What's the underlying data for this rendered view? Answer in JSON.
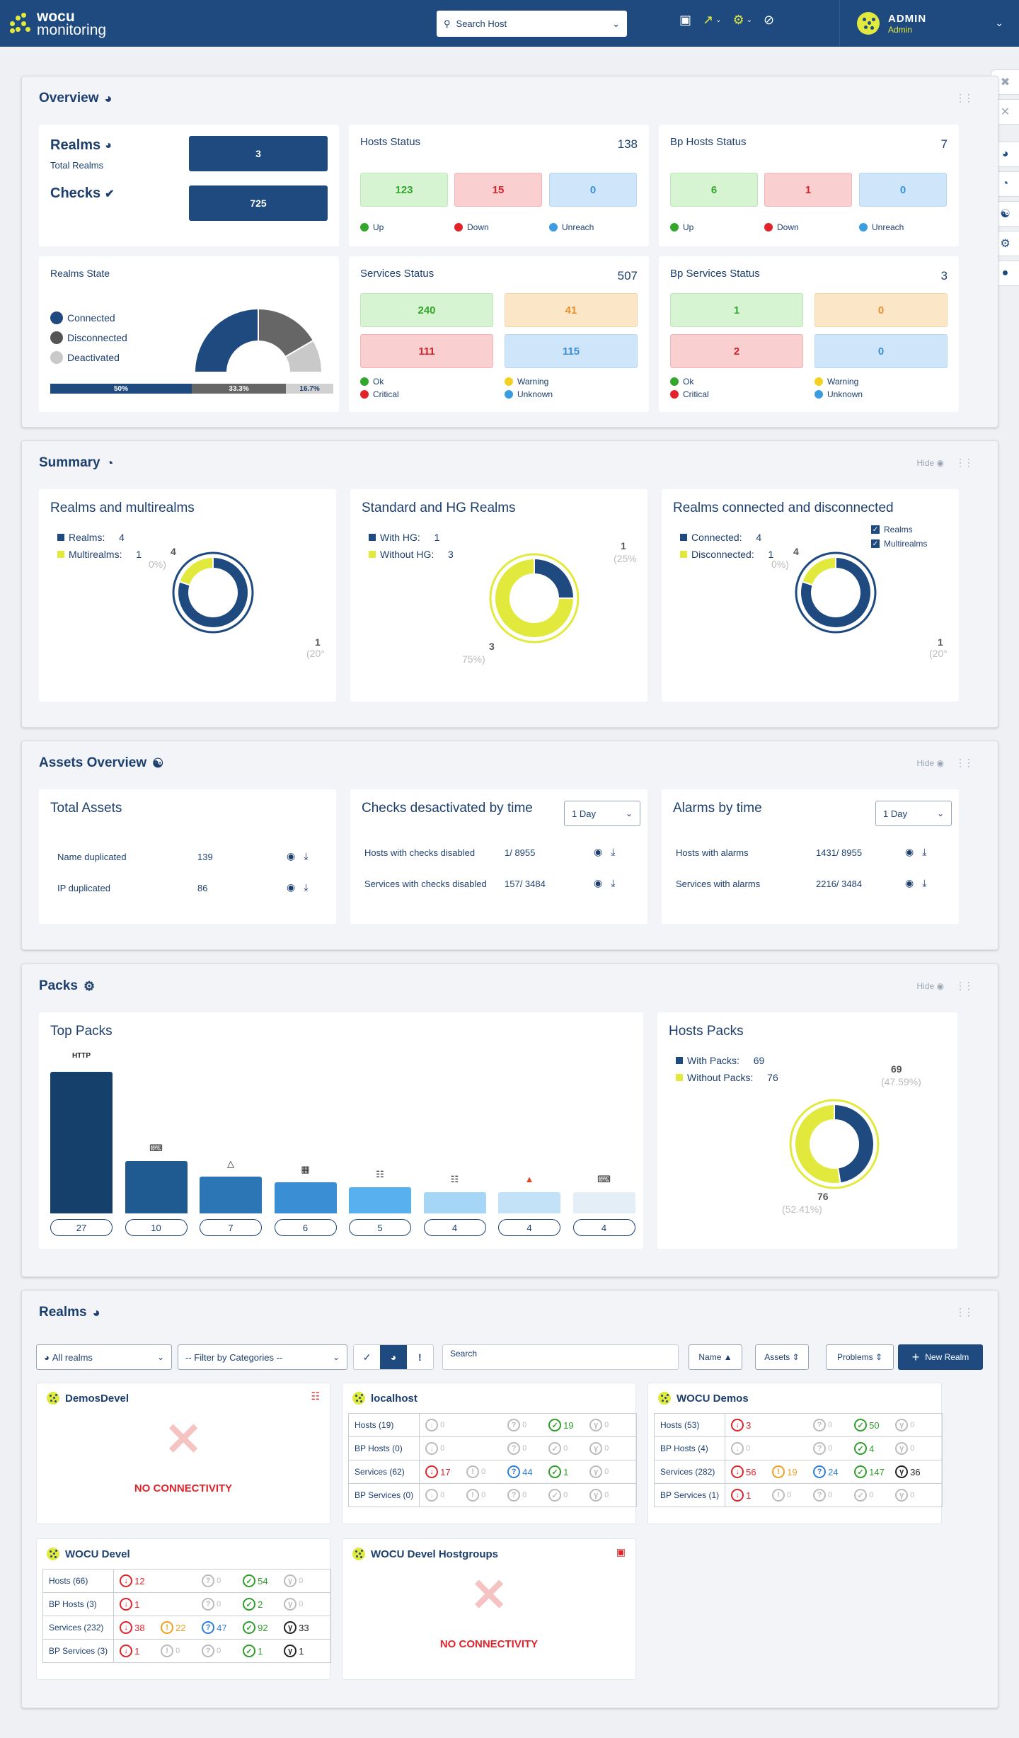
{
  "header": {
    "logo_line1": "wocu",
    "logo_line2": "monitoring",
    "search_placeholder": "Search Host",
    "user_name": "ADMIN",
    "user_role": "Admin"
  },
  "overview": {
    "title": "Overview",
    "realms_label": "Realms",
    "total_realms_label": "Total Realms",
    "realms_value": "3",
    "checks_label": "Checks",
    "checks_value": "725",
    "hosts_status": {
      "title": "Hosts Status",
      "total": "138",
      "up": "123",
      "down": "15",
      "unreach": "0",
      "legend_up": "Up",
      "legend_down": "Down",
      "legend_unreach": "Unreach"
    },
    "bp_hosts_status": {
      "title": "Bp Hosts Status",
      "total": "7",
      "up": "6",
      "down": "1",
      "unreach": "0",
      "legend_up": "Up",
      "legend_down": "Down",
      "legend_unreach": "Unreach"
    },
    "realms_state": {
      "title": "Realms State",
      "connected": "Connected",
      "disconnected": "Disconnected",
      "deactivated": "Deactivated",
      "p_connected": "50%",
      "p_disconnected": "33.3%",
      "p_deactivated": "16.7%",
      "v_connected": 50,
      "v_disconnected": 33.3,
      "v_deactivated": 16.7
    },
    "services_status": {
      "title": "Services Status",
      "total": "507",
      "ok": "240",
      "warning": "41",
      "critical": "111",
      "unknown": "115",
      "legend_ok": "Ok",
      "legend_warning": "Warning",
      "legend_critical": "Critical",
      "legend_unknown": "Unknown"
    },
    "bp_services_status": {
      "title": "Bp Services Status",
      "total": "3",
      "ok": "1",
      "warning": "0",
      "critical": "2",
      "unknown": "0",
      "legend_ok": "Ok",
      "legend_warning": "Warning",
      "legend_critical": "Critical",
      "legend_unknown": "Unknown"
    }
  },
  "summary": {
    "title": "Summary",
    "hide_label": "Hide",
    "realms_multi": {
      "title": "Realms and multirealms",
      "l1": "Realms:",
      "v1": "4",
      "l2": "Multirealms:",
      "v2": "1",
      "lab_a": "4",
      "lab_a_pct": "0%)",
      "lab_b": "1",
      "lab_b_pct": "(20°"
    },
    "std_hg": {
      "title": "Standard and HG Realms",
      "l1": "With HG:",
      "v1": "1",
      "l2": "Without HG:",
      "v2": "3",
      "lab_a": "1",
      "lab_a_pct": "(25%",
      "lab_b": "3",
      "lab_b_pct": "75%)"
    },
    "conn_disc": {
      "title": "Realms connected and disconnected",
      "l1": "Connected:",
      "v1": "4",
      "l2": "Disconnected:",
      "v2": "1",
      "chk1": "Realms",
      "chk2": "Multirealms",
      "lab_a": "4",
      "lab_a_pct": "0%)",
      "lab_b": "1",
      "lab_b_pct": "(20°"
    }
  },
  "assets": {
    "title": "Assets Overview",
    "hide_label": "Hide",
    "total": {
      "title": "Total Assets",
      "r1": "Name duplicated",
      "r1v": "139",
      "r2": "IP duplicated",
      "r2v": "86"
    },
    "checks_deact": {
      "title": "Checks desactivated by time",
      "select": "1 Day",
      "r1": "Hosts with checks disabled",
      "r1v": "1/ 8955",
      "r2": "Services with checks disabled",
      "r2v": "157/ 3484"
    },
    "alarms": {
      "title": "Alarms by time",
      "select": "1 Day",
      "r1": "Hosts with alarms",
      "r1v": "1431/ 8955",
      "r2": "Services with alarms",
      "r2v": "2216/ 3484"
    }
  },
  "packs": {
    "title": "Packs",
    "hide_label": "Hide",
    "top_title": "Top Packs",
    "first_label": "HTTP",
    "hosts_packs": {
      "title": "Hosts Packs",
      "l1": "With Packs:",
      "v1": "69",
      "l2": "Without Packs:",
      "v2": "76",
      "lab_a": "69",
      "lab_a_pct": "(47.59%)",
      "lab_b": "76",
      "lab_b_pct": "(52.41%)"
    }
  },
  "chart_data": [
    {
      "type": "bar",
      "title": "Top Packs",
      "categories": [
        "HTTP",
        "",
        "",
        "",
        "",
        "",
        "",
        ""
      ],
      "values": [
        27,
        10,
        7,
        6,
        5,
        4,
        4,
        4
      ],
      "colors": [
        "#14406b",
        "#1f5a91",
        "#2c76b6",
        "#3a8ed4",
        "#59b0ee",
        "#a6d6f6",
        "#c4e2f7",
        "#e3eef7"
      ],
      "value_labels": [
        "27",
        "10",
        "7",
        "6",
        "5",
        "4",
        "4",
        "4"
      ]
    },
    {
      "type": "pie",
      "title": "Realms and multirealms",
      "labels": [
        "Realms",
        "Multirealms"
      ],
      "values": [
        4,
        1
      ]
    },
    {
      "type": "pie",
      "title": "Standard and HG Realms",
      "labels": [
        "With HG",
        "Without HG"
      ],
      "values": [
        1,
        3
      ]
    },
    {
      "type": "pie",
      "title": "Realms connected and disconnected",
      "labels": [
        "Connected",
        "Disconnected"
      ],
      "values": [
        4,
        1
      ]
    },
    {
      "type": "pie",
      "title": "Hosts Packs",
      "labels": [
        "With Packs",
        "Without Packs"
      ],
      "values": [
        69,
        76
      ]
    },
    {
      "type": "pie",
      "title": "Realms State",
      "labels": [
        "Connected",
        "Disconnected",
        "Deactivated"
      ],
      "values": [
        50,
        33.3,
        16.7
      ]
    }
  ],
  "realms": {
    "title": "Realms",
    "all_realms": "All realms",
    "filter_categories": "-- Filter by Categories --",
    "search_label": "Search",
    "sort_name": "Name",
    "sort_assets": "Assets",
    "sort_problems": "Problems",
    "new_realm": "New Realm",
    "no_connectivity": "NO CONNECTIVITY",
    "cards": [
      {
        "name": "DemosDevel"
      },
      {
        "name": "localhost",
        "rows": [
          {
            "label": "Hosts (19)",
            "c": [
              "0",
              "0",
              "19",
              "0"
            ]
          },
          {
            "label": "BP Hosts (0)",
            "c": [
              "0",
              "0",
              "0",
              "0"
            ]
          },
          {
            "label": "Services (62)",
            "c": [
              "17",
              "0",
              "44",
              "1",
              "0"
            ]
          },
          {
            "label": "BP Services (0)",
            "c": [
              "0",
              "0",
              "0",
              "0",
              "0"
            ]
          }
        ]
      },
      {
        "name": "WOCU Demos",
        "rows": [
          {
            "label": "Hosts (53)",
            "c": [
              "3",
              "0",
              "50",
              "0"
            ]
          },
          {
            "label": "BP Hosts (4)",
            "c": [
              "0",
              "0",
              "4",
              "0"
            ]
          },
          {
            "label": "Services (282)",
            "c": [
              "56",
              "19",
              "24",
              "147",
              "36"
            ]
          },
          {
            "label": "BP Services (1)",
            "c": [
              "1",
              "0",
              "0",
              "0",
              "0"
            ]
          }
        ]
      },
      {
        "name": "WOCU Devel",
        "rows": [
          {
            "label": "Hosts (66)",
            "c": [
              "12",
              "0",
              "54",
              "0"
            ]
          },
          {
            "label": "BP Hosts (3)",
            "c": [
              "1",
              "0",
              "2",
              "0"
            ]
          },
          {
            "label": "Services (232)",
            "c": [
              "38",
              "22",
              "47",
              "92",
              "33"
            ]
          },
          {
            "label": "BP Services (3)",
            "c": [
              "1",
              "0",
              "0",
              "1",
              "1"
            ]
          }
        ]
      },
      {
        "name": "WOCU Devel Hostgroups"
      }
    ]
  }
}
